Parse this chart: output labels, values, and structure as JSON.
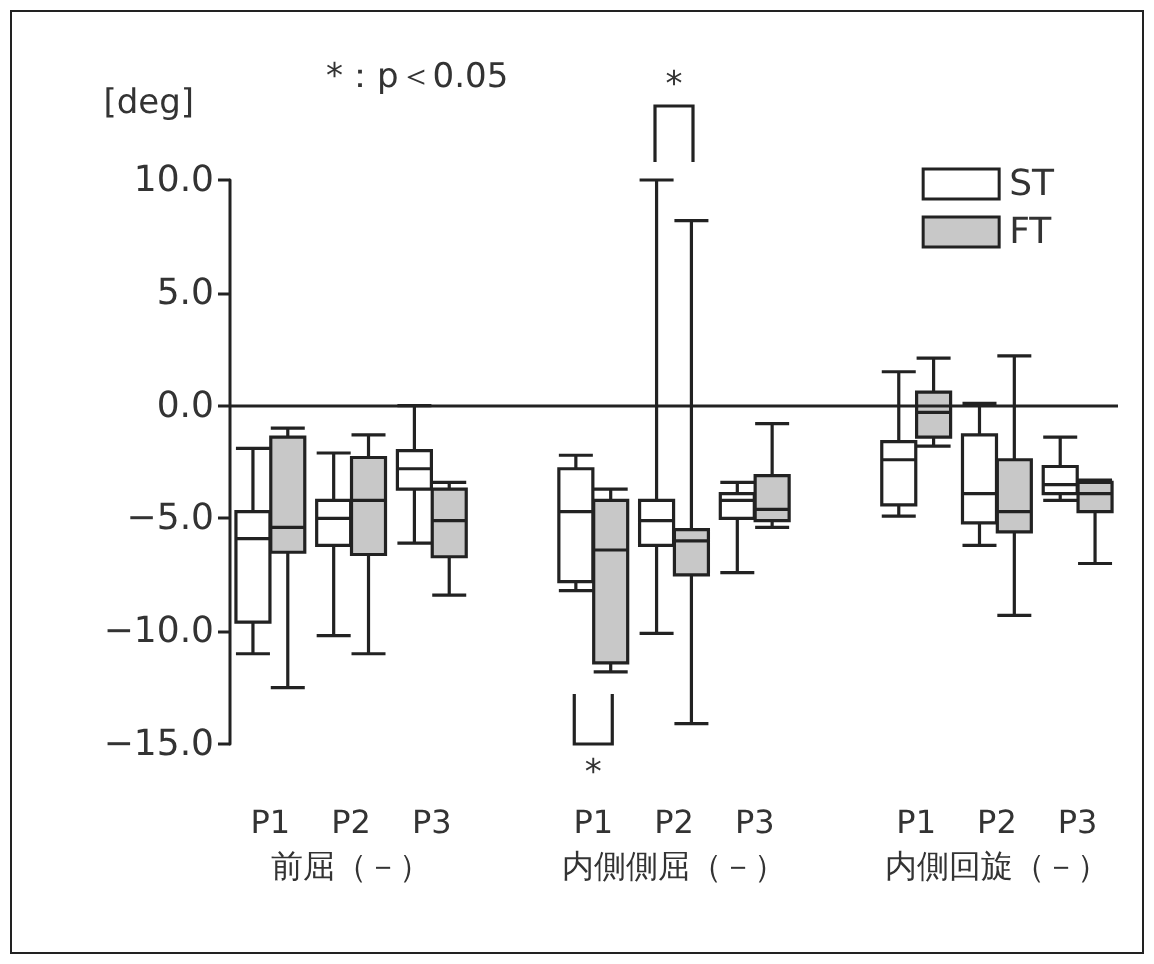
{
  "chart_data": {
    "type": "box",
    "ylabel": "[deg]",
    "annotations": [
      "*：p＜0.05",
      "*",
      "*"
    ],
    "categories": [
      "P1",
      "P2\n前屈（－）",
      "P3",
      null,
      "P1",
      "P2\n内側側屈（－）",
      "P3",
      null,
      "P1",
      "P2\n内側回旋（－）",
      "P3"
    ],
    "ylim": [
      -15,
      10
    ],
    "yticks": [
      {
        "value": -15,
        "label": "−15.0"
      },
      {
        "value": -10,
        "label": "−10.0"
      },
      {
        "value": -5,
        "label": "−5.0"
      },
      {
        "value": 0,
        "label": "0.0"
      },
      {
        "value": 5,
        "label": "5.0"
      },
      {
        "value": 10,
        "label": "10.0"
      }
    ],
    "grid": false,
    "legend": "top right",
    "ref_lines": [
      {
        "axis": "y",
        "value": 0,
        "color": "#222222"
      }
    ],
    "series": [
      {
        "name": "ST",
        "color": "#ffffff",
        "boxes": [
          {
            "low": -11.0,
            "q1": -9.6,
            "median": -5.9,
            "q3": -4.7,
            "high": -1.9
          },
          {
            "low": -10.2,
            "q1": -6.2,
            "median": -5.0,
            "q3": -4.2,
            "high": -2.1
          },
          {
            "low": -6.1,
            "q1": -3.7,
            "median": -2.8,
            "q3": -2.0,
            "high": 0.0
          },
          null,
          {
            "low": -8.2,
            "q1": -7.8,
            "median": -4.7,
            "q3": -2.8,
            "high": -2.2
          },
          {
            "low": -10.1,
            "q1": -6.2,
            "median": -5.1,
            "q3": -4.2,
            "high": 10.0
          },
          {
            "low": -7.4,
            "q1": -5.0,
            "median": -4.2,
            "q3": -3.9,
            "high": -3.4
          },
          null,
          {
            "low": -4.9,
            "q1": -4.4,
            "median": -2.4,
            "q3": -1.6,
            "high": 1.5
          },
          {
            "low": -6.2,
            "q1": -5.2,
            "median": -3.9,
            "q3": -1.3,
            "high": 0.1
          },
          {
            "low": -4.2,
            "q1": -3.9,
            "median": -3.5,
            "q3": -2.7,
            "high": -1.4
          }
        ]
      },
      {
        "name": "FT",
        "color": "#c8c8c8",
        "boxes": [
          {
            "low": -12.5,
            "q1": -6.5,
            "median": -5.4,
            "q3": -1.4,
            "high": -1.0
          },
          {
            "low": -11.0,
            "q1": -6.6,
            "median": -4.2,
            "q3": -2.3,
            "high": -1.3
          },
          {
            "low": -8.4,
            "q1": -6.7,
            "median": -5.1,
            "q3": -3.7,
            "high": -3.4
          },
          null,
          {
            "low": -11.8,
            "q1": -11.4,
            "median": -6.4,
            "q3": -4.2,
            "high": -3.7
          },
          {
            "low": -14.1,
            "q1": -7.5,
            "median": -6.0,
            "q3": -5.5,
            "high": 8.2
          },
          {
            "low": -5.4,
            "q1": -5.1,
            "median": -4.6,
            "q3": -3.1,
            "high": -0.8
          },
          null,
          {
            "low": -1.8,
            "q1": -1.4,
            "median": -0.3,
            "q3": 0.6,
            "high": 2.1
          },
          {
            "low": -9.3,
            "q1": -5.6,
            "median": -4.7,
            "q3": -2.4,
            "high": 2.2
          },
          {
            "low": -7.0,
            "q1": -4.7,
            "median": -3.9,
            "q3": -3.4,
            "high": -3.3
          }
        ]
      }
    ]
  }
}
